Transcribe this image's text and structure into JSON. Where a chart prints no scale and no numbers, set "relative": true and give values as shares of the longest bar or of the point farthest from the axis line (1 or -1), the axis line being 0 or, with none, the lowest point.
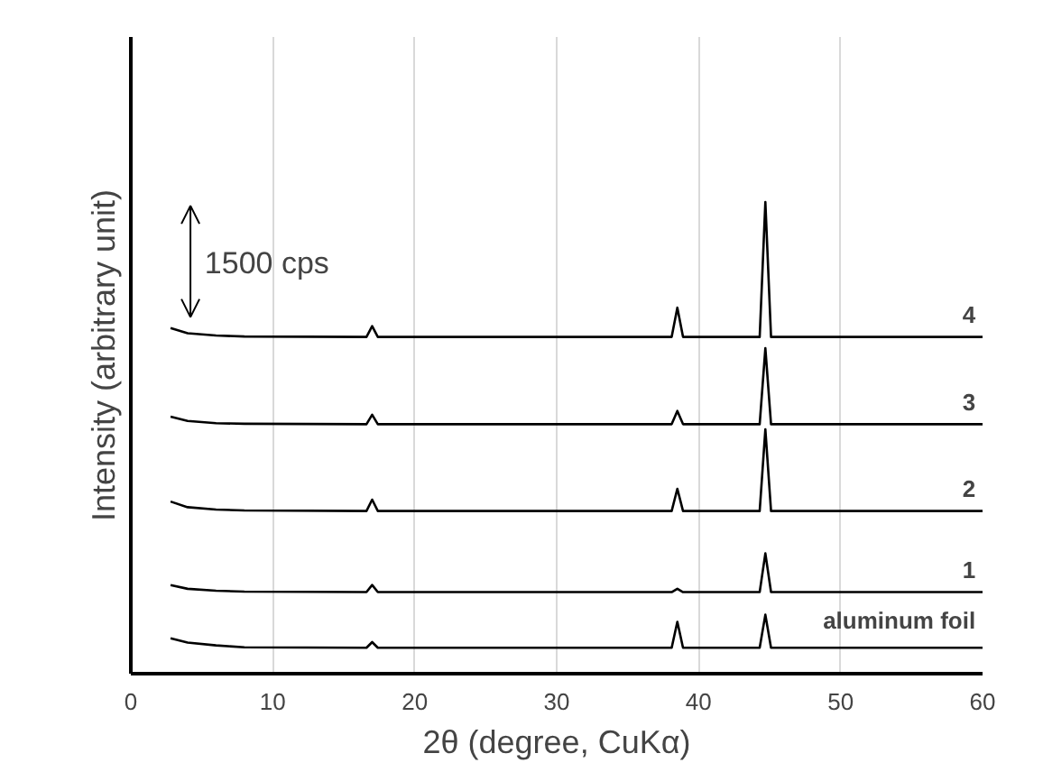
{
  "chart_data": {
    "type": "line",
    "xlabel": "2θ (degree, CuKα)",
    "ylabel": "Intensity (arbitrary unit)",
    "annotations": [
      "1500 cps"
    ],
    "relative": true,
    "xlim": [
      0,
      60
    ],
    "xticks": [
      0,
      10,
      20,
      30,
      40,
      50,
      60
    ],
    "grid": "x",
    "series": [
      {
        "name": "aluminum foil",
        "color": "#000000",
        "x": [
          2.8,
          4,
          6,
          8,
          16.6,
          17.0,
          17.4,
          38.1,
          38.5,
          38.9,
          44.3,
          44.7,
          45.1,
          60
        ],
        "values": [
          0.075,
          0.066,
          0.06,
          0.056,
          0.055,
          0.067,
          0.055,
          0.055,
          0.11,
          0.055,
          0.055,
          0.125,
          0.055,
          0.055
        ]
      },
      {
        "name": "1",
        "color": "#000000",
        "x": [
          2.8,
          4,
          6,
          8,
          16.6,
          17.0,
          17.4,
          38.1,
          38.5,
          38.9,
          44.3,
          44.7,
          45.1,
          60
        ],
        "values": [
          0.188,
          0.18,
          0.176,
          0.174,
          0.173,
          0.188,
          0.173,
          0.173,
          0.18,
          0.173,
          0.173,
          0.255,
          0.173,
          0.173
        ]
      },
      {
        "name": "2",
        "color": "#000000",
        "x": [
          2.8,
          4,
          6,
          8,
          16.6,
          17.0,
          17.4,
          38.1,
          38.5,
          38.9,
          44.3,
          44.7,
          45.1,
          60
        ],
        "values": [
          0.365,
          0.353,
          0.348,
          0.346,
          0.345,
          0.369,
          0.345,
          0.345,
          0.392,
          0.345,
          0.345,
          0.518,
          0.345,
          0.345
        ]
      },
      {
        "name": "3",
        "color": "#000000",
        "x": [
          2.8,
          4,
          6,
          8,
          16.6,
          17.0,
          17.4,
          38.1,
          38.5,
          38.9,
          44.3,
          44.7,
          45.1,
          60
        ],
        "values": [
          0.545,
          0.536,
          0.531,
          0.53,
          0.529,
          0.549,
          0.529,
          0.529,
          0.557,
          0.529,
          0.529,
          0.69,
          0.529,
          0.529
        ]
      },
      {
        "name": "4",
        "color": "#000000",
        "x": [
          2.8,
          4,
          6,
          8,
          16.6,
          17.0,
          17.4,
          38.1,
          38.5,
          38.9,
          44.3,
          44.7,
          45.1,
          60
        ],
        "values": [
          0.733,
          0.722,
          0.717,
          0.715,
          0.714,
          0.737,
          0.714,
          0.714,
          0.776,
          0.714,
          0.714,
          1,
          0.714,
          0.714
        ]
      }
    ]
  }
}
